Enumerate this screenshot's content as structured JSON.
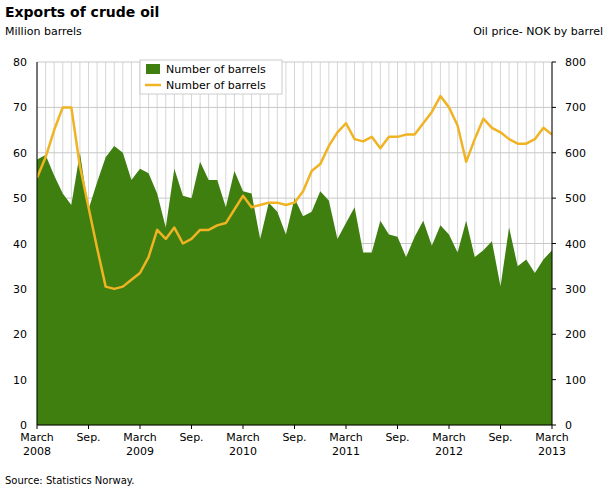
{
  "chart_data": {
    "type": "area",
    "title": "Exports of crude oil",
    "y_label": "Million barrels",
    "y2_label": "Oil price- NOK by barrel",
    "source": "Source: Statistics Norway.",
    "categories": [
      "March 2008",
      null,
      null,
      null,
      null,
      null,
      "Sep.",
      null,
      null,
      null,
      null,
      null,
      "March 2009",
      null,
      null,
      null,
      null,
      null,
      "Sep.",
      null,
      null,
      null,
      null,
      null,
      "March 2010",
      null,
      null,
      null,
      null,
      null,
      "Sep.",
      null,
      null,
      null,
      null,
      null,
      "March 2011",
      null,
      null,
      null,
      null,
      null,
      "Sep.",
      null,
      null,
      null,
      null,
      null,
      "March 2012",
      null,
      null,
      null,
      null,
      null,
      "Sep.",
      null,
      null,
      null,
      null,
      null,
      "March 2013"
    ],
    "series": [
      {
        "name": "Number of barrels",
        "type": "area",
        "color": "#3f7f0f",
        "axis": "y",
        "values": [
          58.5,
          59.5,
          55,
          51,
          48.5,
          60,
          47.5,
          53.5,
          59,
          61.5,
          60,
          54,
          56.5,
          55.5,
          51,
          43.5,
          56.5,
          50.5,
          50,
          58,
          54,
          54,
          48,
          56,
          51.5,
          51,
          41,
          49,
          47,
          42,
          50,
          46,
          47,
          51.5,
          49.5,
          41,
          44.5,
          48,
          38,
          38,
          45,
          42,
          41.5,
          37,
          41.5,
          45,
          39.5,
          44,
          42,
          38,
          45,
          37,
          38.5,
          40.5,
          30.5,
          43.5,
          35,
          36.5,
          33.5,
          36.5,
          38.5
        ]
      },
      {
        "name": "Number of barrels",
        "type": "line",
        "color": "#f0b323",
        "axis": "y2",
        "values": [
          545,
          590,
          650,
          700,
          700,
          570,
          480,
          390,
          305,
          300,
          305,
          320,
          335,
          370,
          430,
          410,
          435,
          400,
          410,
          430,
          430,
          440,
          445,
          475,
          505,
          480,
          485,
          490,
          490,
          485,
          490,
          515,
          560,
          575,
          615,
          645,
          665,
          630,
          625,
          635,
          610,
          635,
          635,
          640,
          640,
          665,
          690,
          725,
          700,
          660,
          580,
          630,
          675,
          655,
          645,
          630,
          620,
          620,
          630,
          655,
          640
        ]
      }
    ],
    "ylim": [
      0,
      80
    ],
    "yticks": [
      0,
      10,
      20,
      30,
      40,
      50,
      60,
      70,
      80
    ],
    "y2lim": [
      0,
      800
    ],
    "y2ticks": [
      0,
      100,
      200,
      300,
      400,
      500,
      600,
      700,
      800
    ],
    "grid": true,
    "legend": "top-left"
  }
}
